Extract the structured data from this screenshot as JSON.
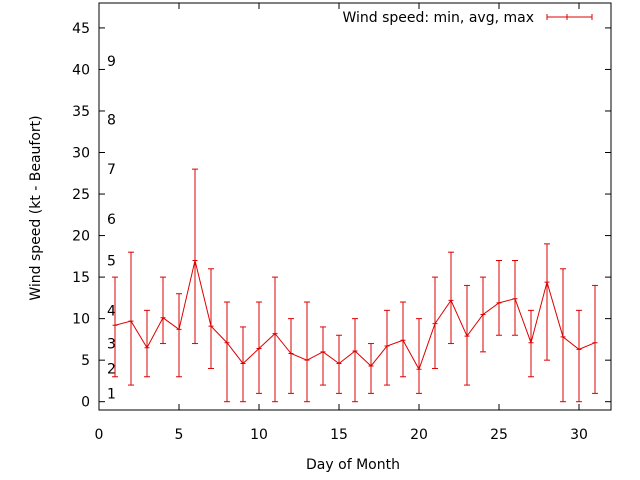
{
  "chart_data": {
    "type": "line",
    "title": "",
    "xlabel": "Day of Month",
    "ylabel": "Wind speed (kt - Beaufort)",
    "xlim": [
      0,
      32
    ],
    "ylim": [
      -1,
      48
    ],
    "x_ticks": [
      0,
      5,
      10,
      15,
      20,
      25,
      30
    ],
    "y_ticks": [
      0,
      5,
      10,
      15,
      20,
      25,
      30,
      35,
      40,
      45
    ],
    "grid": false,
    "legend_position": "top-right",
    "series": [
      {
        "name": "Wind speed: min, avg, max",
        "color": "#dd0000",
        "x": [
          1,
          2,
          3,
          4,
          5,
          6,
          7,
          8,
          9,
          10,
          11,
          12,
          13,
          14,
          15,
          16,
          17,
          18,
          19,
          20,
          21,
          22,
          23,
          24,
          25,
          26,
          27,
          28,
          29,
          30,
          31
        ],
        "avg": [
          9.2,
          9.7,
          6.5,
          10.1,
          8.7,
          17,
          9.1,
          7.1,
          4.6,
          6.4,
          8.2,
          5.8,
          5,
          6,
          4.6,
          6.1,
          4.3,
          6.7,
          7.4,
          3.9,
          9.4,
          12.2,
          7.9,
          10.5,
          11.9,
          12.4,
          7.1,
          14.4,
          7.8,
          6.3,
          7.1
        ],
        "min": [
          3,
          2,
          3,
          7,
          3,
          7,
          4,
          0,
          0,
          1,
          0,
          1,
          0,
          2,
          1,
          0,
          1,
          2,
          3,
          1,
          4,
          7,
          2,
          6,
          8,
          8,
          3,
          5,
          0,
          0,
          1
        ],
        "max": [
          15,
          18,
          11,
          15,
          13,
          28,
          16,
          12,
          9,
          12,
          15,
          10,
          12,
          9,
          8,
          10,
          7,
          11,
          12,
          10,
          15,
          18,
          14,
          15,
          17,
          17,
          11,
          19,
          16,
          11,
          14
        ]
      }
    ],
    "beaufort_labels": [
      {
        "label": "1",
        "y": 1
      },
      {
        "label": "2",
        "y": 4
      },
      {
        "label": "3",
        "y": 7
      },
      {
        "label": "4",
        "y": 11
      },
      {
        "label": "5",
        "y": 17
      },
      {
        "label": "6",
        "y": 22
      },
      {
        "label": "7",
        "y": 28
      },
      {
        "label": "8",
        "y": 34
      },
      {
        "label": "9",
        "y": 41
      }
    ]
  }
}
